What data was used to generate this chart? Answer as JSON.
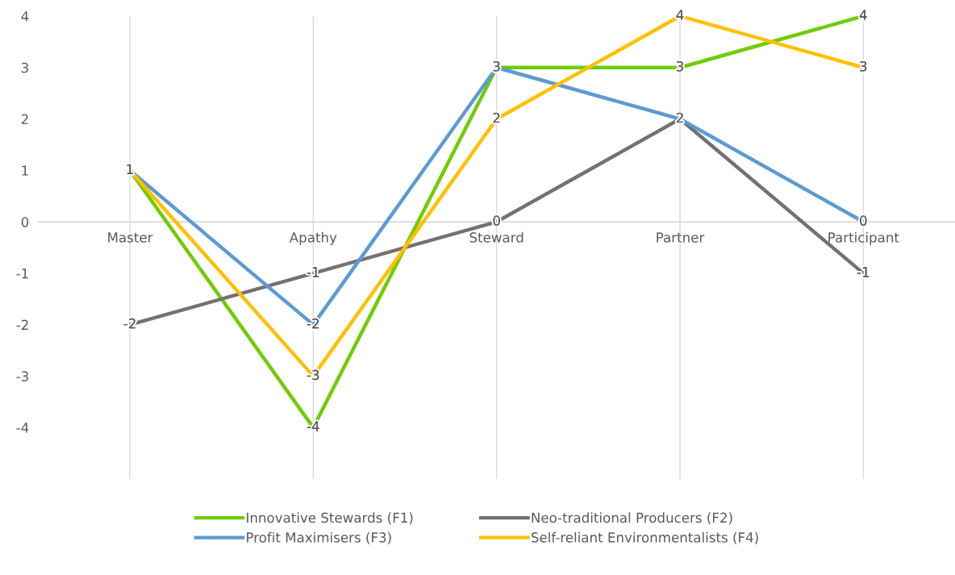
{
  "chart_data": {
    "type": "line",
    "categories": [
      "Master",
      "Apathy",
      "Steward",
      "Partner",
      "Participant"
    ],
    "series": [
      {
        "name": "Innovative Stewards (F1)",
        "color": "#70cc00",
        "values": [
          1,
          -4,
          3,
          3,
          4
        ],
        "value_labels": [
          "1",
          "-4",
          "3",
          "3",
          "4"
        ]
      },
      {
        "name": "Neo-traditional Producers (F2)",
        "color": "#767171",
        "values": [
          -2,
          -1,
          0,
          2,
          -1
        ],
        "value_labels": [
          "-2",
          "-1",
          "0",
          "2",
          "-1"
        ]
      },
      {
        "name": "Profit Maximisers (F3)",
        "color": "#5b9bd5",
        "values": [
          1,
          -2,
          3,
          2,
          0
        ],
        "value_labels": [
          null,
          "-2",
          null,
          null,
          "0"
        ]
      },
      {
        "name": "Self-reliant Environmentalists (F4)",
        "color": "#ffc000",
        "values": [
          1,
          -3,
          2,
          4,
          3
        ],
        "value_labels": [
          null,
          "-3",
          "2",
          "4",
          "3"
        ]
      }
    ],
    "ylim": [
      -5,
      4
    ],
    "yticks": [
      -4,
      -3,
      -2,
      -1,
      0,
      1,
      2,
      3,
      4
    ],
    "grid": "x",
    "legend": "bottom",
    "line_style": "solid"
  }
}
